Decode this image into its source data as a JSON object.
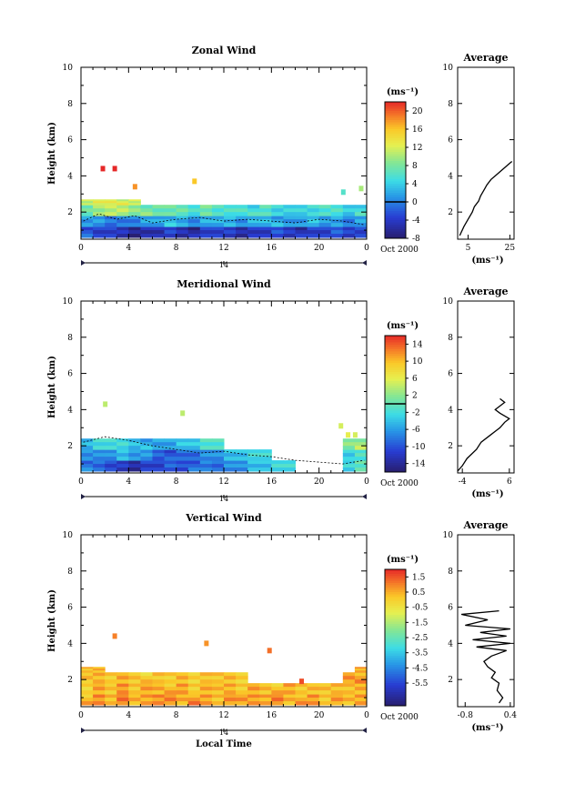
{
  "figure": {
    "x_axis_label": "Local Time",
    "date_label": "Oct 2000",
    "day_label": "14",
    "average_title": "Average",
    "y_axis_label": "Height (km)",
    "units_label": "(ms⁻¹)"
  },
  "chart_data": [
    {
      "type": "heatmap",
      "title": "Zonal Wind",
      "xlabel": "",
      "ylabel": "Height (km)",
      "xlim": [
        0,
        24
      ],
      "ylim": [
        0.5,
        10
      ],
      "x_ticks": [
        "0",
        "4",
        "8",
        "12",
        "16",
        "20",
        "0"
      ],
      "y_ticks": [
        "2",
        "4",
        "6",
        "8",
        "10"
      ],
      "colorbar": {
        "unit": "(ms⁻¹)",
        "min": -8,
        "max": 22,
        "ticks": [
          "20",
          "16",
          "12",
          "8",
          "4",
          "0",
          "-4",
          "-8"
        ],
        "contour_level": 0
      },
      "contour": [
        [
          0.2,
          1.5
        ],
        [
          1.5,
          1.9
        ],
        [
          3.0,
          1.6
        ],
        [
          4.5,
          1.8
        ],
        [
          6.0,
          1.4
        ],
        [
          8.0,
          1.6
        ],
        [
          10.0,
          1.7
        ],
        [
          12.0,
          1.5
        ],
        [
          14.0,
          1.6
        ],
        [
          16.0,
          1.5
        ],
        [
          18.0,
          1.4
        ],
        [
          20.0,
          1.6
        ],
        [
          22.0,
          1.5
        ],
        [
          23.8,
          1.3
        ]
      ],
      "field": {
        "layers": [
          {
            "h_bottom": 0.6,
            "h_top": 1.2,
            "values": [
              -2,
              -4,
              -3,
              -5,
              -6,
              -6,
              -5,
              -4,
              -5,
              -6,
              -4,
              -3,
              -4,
              -5,
              -5,
              -4,
              -3,
              -4,
              -5,
              -4,
              -3,
              -2,
              -3,
              -4
            ]
          },
          {
            "h_bottom": 1.2,
            "h_top": 1.8,
            "values": [
              2,
              1,
              0,
              -1,
              0,
              1,
              2,
              3,
              2,
              1,
              2,
              3,
              2,
              1,
              2,
              3,
              2,
              1,
              2,
              3,
              2,
              1,
              0,
              1
            ]
          },
          {
            "h_bottom": 1.8,
            "h_top": 2.4,
            "values": [
              8,
              9,
              11,
              10,
              9,
              8,
              7,
              8,
              7,
              6,
              7,
              6,
              5,
              6,
              5,
              6,
              5,
              4,
              5,
              4,
              6,
              5,
              4,
              5
            ]
          },
          {
            "h_bottom": 2.4,
            "h_top": 2.7,
            "values": [
              11,
              12,
              13,
              12,
              11,
              null,
              null,
              null,
              null,
              null,
              null,
              null,
              null,
              null,
              null,
              null,
              null,
              null,
              null,
              null,
              null,
              null,
              null,
              null
            ]
          }
        ],
        "patches": [
          {
            "x": 1.8,
            "h": 4.4,
            "value": 22
          },
          {
            "x": 2.8,
            "h": 4.4,
            "value": 22
          },
          {
            "x": 4.5,
            "h": 3.4,
            "value": 18
          },
          {
            "x": 9.5,
            "h": 3.7,
            "value": 16
          },
          {
            "x": 22.0,
            "h": 3.1,
            "value": 6
          },
          {
            "x": 23.5,
            "h": 3.3,
            "value": 10
          }
        ]
      }
    },
    {
      "type": "line",
      "title": "Average",
      "xlabel": "(ms⁻¹)",
      "x_ticks": [
        "5",
        "25"
      ],
      "xlim": [
        0,
        27
      ],
      "ylim": [
        0.5,
        10
      ],
      "y_ticks": [
        "2",
        "4",
        "6",
        "8",
        "10"
      ],
      "x": [
        1,
        3,
        5,
        7,
        8,
        10,
        11,
        12,
        13,
        14,
        16,
        18,
        20,
        21,
        22,
        23,
        24,
        25,
        26
      ],
      "y": [
        0.7,
        1.2,
        1.6,
        2.0,
        2.3,
        2.6,
        2.9,
        3.1,
        3.3,
        3.5,
        3.8,
        4.0,
        4.2,
        4.3,
        4.4,
        4.5,
        4.6,
        4.7,
        4.8
      ]
    },
    {
      "type": "heatmap",
      "title": "Meridional Wind",
      "xlabel": "",
      "ylabel": "Height (km)",
      "xlim": [
        0,
        24
      ],
      "ylim": [
        0.5,
        10
      ],
      "x_ticks": [
        "0",
        "4",
        "8",
        "12",
        "16",
        "20",
        "0"
      ],
      "y_ticks": [
        "2",
        "4",
        "6",
        "8",
        "10"
      ],
      "colorbar": {
        "unit": "(ms⁻¹)",
        "min": -16,
        "max": 16,
        "ticks": [
          "14",
          "10",
          "6",
          "2",
          "-2",
          "-6",
          "-10",
          "-14"
        ],
        "contour_level": 0
      },
      "contour": [
        [
          0.2,
          2.2
        ],
        [
          2.0,
          2.5
        ],
        [
          4.0,
          2.3
        ],
        [
          6.0,
          2.0
        ],
        [
          8.0,
          1.8
        ],
        [
          10.0,
          1.6
        ],
        [
          12.0,
          1.7
        ],
        [
          14.0,
          1.5
        ],
        [
          16.0,
          1.4
        ],
        [
          18.0,
          1.2
        ],
        [
          20.0,
          1.1
        ],
        [
          22.0,
          1.0
        ],
        [
          23.8,
          1.2
        ]
      ],
      "field": {
        "layers": [
          {
            "h_bottom": 0.6,
            "h_top": 1.2,
            "values": [
              -8,
              -9,
              -10,
              -12,
              -13,
              -12,
              -11,
              -10,
              -10,
              -9,
              -8,
              -8,
              -7,
              -6,
              -5,
              -4,
              -3,
              -2,
              null,
              null,
              null,
              null,
              -2,
              -1
            ]
          },
          {
            "h_bottom": 1.2,
            "h_top": 1.8,
            "values": [
              -6,
              -7,
              -6,
              -5,
              -6,
              -7,
              -9,
              -10,
              -9,
              -8,
              -7,
              -6,
              -5,
              -4,
              -3,
              -2,
              null,
              null,
              null,
              null,
              null,
              null,
              -3,
              -2
            ]
          },
          {
            "h_bottom": 1.8,
            "h_top": 2.4,
            "values": [
              -4,
              -3,
              -2,
              -3,
              -4,
              -5,
              -6,
              -5,
              -4,
              -3,
              -2,
              -1,
              null,
              null,
              null,
              null,
              null,
              null,
              null,
              null,
              null,
              null,
              2,
              3
            ]
          }
        ],
        "patches": [
          {
            "x": 2.0,
            "h": 4.3,
            "value": 4
          },
          {
            "x": 8.5,
            "h": 3.8,
            "value": 4
          },
          {
            "x": 21.8,
            "h": 3.1,
            "value": 5
          },
          {
            "x": 22.4,
            "h": 2.6,
            "value": 6
          },
          {
            "x": 23.0,
            "h": 2.6,
            "value": 5
          }
        ]
      }
    },
    {
      "type": "line",
      "title": "Average",
      "xlabel": "(ms⁻¹)",
      "x_ticks": [
        "-4",
        "6"
      ],
      "xlim": [
        -5,
        7
      ],
      "ylim": [
        0.5,
        10
      ],
      "y_ticks": [
        "2",
        "4",
        "6",
        "8",
        "10"
      ],
      "x": [
        -5,
        -4,
        -3,
        -1,
        0,
        2,
        3,
        4,
        5,
        6,
        4,
        3,
        4,
        5,
        4
      ],
      "y": [
        0.6,
        0.9,
        1.3,
        1.8,
        2.2,
        2.6,
        2.8,
        3.0,
        3.3,
        3.5,
        3.8,
        4.0,
        4.2,
        4.4,
        4.6
      ]
    },
    {
      "type": "heatmap",
      "title": "Vertical Wind",
      "xlabel": "Local Time",
      "ylabel": "Height (km)",
      "xlim": [
        0,
        24
      ],
      "ylim": [
        0.5,
        10
      ],
      "x_ticks": [
        "0",
        "4",
        "8",
        "12",
        "16",
        "20",
        "0"
      ],
      "y_ticks": [
        "2",
        "4",
        "6",
        "8",
        "10"
      ],
      "colorbar": {
        "unit": "(ms⁻¹)",
        "min": -7,
        "max": 2,
        "ticks": [
          "1.5",
          "0.5",
          "-0.5",
          "-1.5",
          "-2.5",
          "-3.5",
          "-4.5",
          "-5.5"
        ],
        "contour_level": null
      },
      "contour": [],
      "field": {
        "layers": [
          {
            "h_bottom": 0.6,
            "h_top": 1.2,
            "values": [
              0.3,
              0.8,
              0.5,
              1.0,
              0.6,
              0.4,
              0.9,
              0.7,
              0.5,
              0.8,
              0.6,
              0.4,
              0.7,
              0.9,
              0.5,
              0.6,
              0.8,
              0.4,
              0.5,
              0.7,
              0.3,
              0.6,
              0.5,
              0.4
            ]
          },
          {
            "h_bottom": 1.2,
            "h_top": 1.8,
            "values": [
              0.1,
              0.5,
              0.3,
              0.6,
              0.2,
              0.4,
              0.5,
              0.3,
              0.6,
              0.2,
              0.4,
              0.5,
              0.3,
              0.1,
              0.4,
              0.3,
              0.2,
              0.5,
              0.3,
              0.2,
              0.4,
              0.1,
              0.3,
              0.2
            ]
          },
          {
            "h_bottom": 1.8,
            "h_top": 2.4,
            "values": [
              0.4,
              0.2,
              0.1,
              0.3,
              0.2,
              0.0,
              0.1,
              0.2,
              0.3,
              0.1,
              0.0,
              0.2,
              0.1,
              0.0,
              null,
              null,
              null,
              null,
              null,
              null,
              null,
              null,
              0.8,
              0.6
            ]
          },
          {
            "h_bottom": 2.4,
            "h_top": 2.7,
            "values": [
              0.3,
              0.2,
              null,
              null,
              null,
              null,
              null,
              null,
              null,
              null,
              null,
              null,
              null,
              null,
              null,
              null,
              null,
              null,
              null,
              null,
              null,
              null,
              null,
              0.7
            ]
          }
        ],
        "patches": [
          {
            "x": 2.8,
            "h": 4.4,
            "value": 1.0
          },
          {
            "x": 10.5,
            "h": 4.0,
            "value": 0.8
          },
          {
            "x": 15.8,
            "h": 3.6,
            "value": 1.2
          },
          {
            "x": 18.5,
            "h": 1.9,
            "value": 1.6
          }
        ]
      }
    },
    {
      "type": "line",
      "title": "Average",
      "xlabel": "(ms⁻¹)",
      "x_ticks": [
        "-0.8",
        "0.4"
      ],
      "xlim": [
        -1.0,
        0.5
      ],
      "ylim": [
        0.5,
        10
      ],
      "y_ticks": [
        "2",
        "4",
        "6",
        "8",
        "10"
      ],
      "x": [
        0.1,
        0.2,
        0.05,
        0.1,
        -0.1,
        0.0,
        -0.2,
        -0.3,
        -0.1,
        0.3,
        -0.5,
        0.4,
        -0.6,
        0.3,
        -0.4,
        0.4,
        -0.8,
        -0.2,
        -0.9,
        0.1
      ],
      "y": [
        0.7,
        1.0,
        1.4,
        1.8,
        2.1,
        2.4,
        2.7,
        3.0,
        3.3,
        3.6,
        3.8,
        4.0,
        4.2,
        4.4,
        4.6,
        4.8,
        5.0,
        5.3,
        5.6,
        5.8
      ]
    }
  ]
}
